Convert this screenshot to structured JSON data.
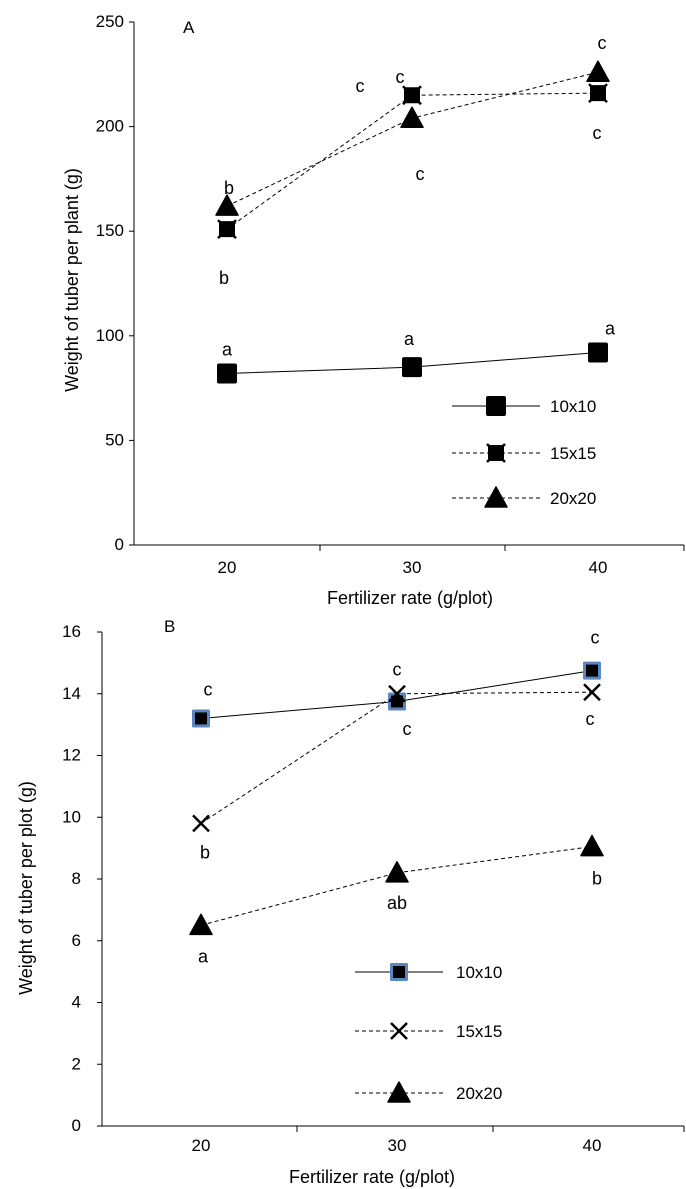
{
  "chart_data": [
    {
      "panel": "A",
      "type": "line",
      "xlabel": "Fertilizer rate (g/plot)",
      "ylabel": "Weight of tuber per plant (g)",
      "categories": [
        "20",
        "30",
        "40"
      ],
      "ylim": [
        0,
        250
      ],
      "yticks": [
        "0",
        "50",
        "100",
        "150",
        "200",
        "250"
      ],
      "legend_position": "bottom-right",
      "series": [
        {
          "name": "10x10",
          "marker": "square",
          "line": "solid",
          "values": [
            82,
            85,
            92
          ],
          "labels": [
            "a",
            "a",
            "a"
          ]
        },
        {
          "name": "15x15",
          "marker": "square-x",
          "line": "dashed",
          "values": [
            151,
            215,
            216
          ],
          "labels": [
            "b",
            "c",
            "c"
          ]
        },
        {
          "name": "20x20",
          "marker": "triangle",
          "line": "dashed",
          "values": [
            162,
            204,
            226
          ],
          "labels": [
            "b",
            "c",
            "c"
          ]
        }
      ],
      "extra_labels": [
        "c"
      ]
    },
    {
      "panel": "B",
      "type": "line",
      "xlabel": "Fertilizer rate (g/plot)",
      "ylabel": "Weight of tuber per plot (g)",
      "categories": [
        "20",
        "30",
        "40"
      ],
      "ylim": [
        0,
        16
      ],
      "yticks": [
        "0",
        "2",
        "4",
        "6",
        "8",
        "10",
        "12",
        "14",
        "16"
      ],
      "legend_position": "bottom-center",
      "series": [
        {
          "name": "10x10",
          "marker": "square-blue",
          "line": "solid",
          "values": [
            13.2,
            13.75,
            14.75
          ],
          "labels": [
            "c",
            "c",
            "c"
          ]
        },
        {
          "name": "15x15",
          "marker": "x",
          "line": "dashed",
          "values": [
            9.8,
            14.0,
            14.05
          ],
          "labels": [
            "b",
            "c",
            "c"
          ]
        },
        {
          "name": "20x20",
          "marker": "triangle",
          "line": "dashed",
          "values": [
            6.5,
            8.2,
            9.05
          ],
          "labels": [
            "a",
            "ab",
            "b"
          ]
        }
      ]
    }
  ]
}
